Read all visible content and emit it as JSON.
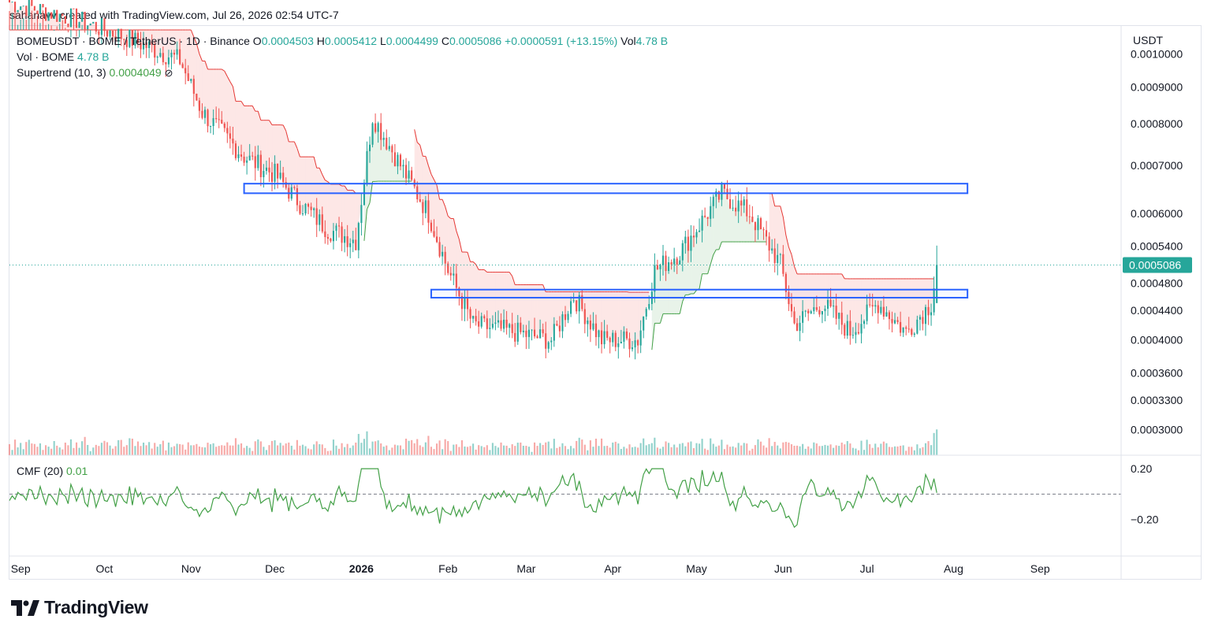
{
  "attribution": "sahanavv created with TradingView.com, Jul 26, 2026 02:54 UTC-7",
  "legend": {
    "symbol": "BOMEUSDT · BOME / TetherUS · 1D · Binance",
    "o_label": "O",
    "o_value": "0.0004503",
    "h_label": "H",
    "h_value": "0.0005412",
    "l_label": "L",
    "l_value": "0.0004499",
    "c_label": "C",
    "c_value": "0.0005086",
    "change": "+0.0000591 (+13.15%)",
    "vol_label": "Vol",
    "vol_value": "4.78 B",
    "vol_row_label": "Vol · BOME",
    "vol_row_value": "4.78 B",
    "supertrend_label": "Supertrend (10, 3)",
    "supertrend_value": "0.0004049",
    "supertrend_icon": "visibility-off-icon"
  },
  "cmf_legend": {
    "label": "CMF (20)",
    "value": "0.01"
  },
  "brand": {
    "name": "TradingView",
    "icon": "tradingview-logo-icon"
  },
  "colors": {
    "up": "#26a69a",
    "down": "#ef5350",
    "supertrend_up": "#43a047",
    "supertrend_down": "#e53935",
    "box": "#2962ff",
    "last_price_bg": "#26a69a"
  },
  "chart_data": [
    {
      "type": "candlestick",
      "symbol": "BOMEUSDT",
      "exchange": "Binance",
      "interval": "1D",
      "currency": "USDT",
      "y_scale": "log",
      "ylim": [
        0.00028,
        0.00108
      ],
      "y_ticks": [
        "0.0010000",
        "0.0009000",
        "0.0008000",
        "0.0007000",
        "0.0006000",
        "0.0005400",
        "0.0004800",
        "0.0004400",
        "0.0004000",
        "0.0003600",
        "0.0003300",
        "0.0003000"
      ],
      "x_ticks": [
        "Sep",
        "Oct",
        "Nov",
        "Dec",
        "2026",
        "Feb",
        "Mar",
        "Apr",
        "May",
        "Jun",
        "Jul",
        "Aug",
        "Sep"
      ],
      "last_price": "0.0005086",
      "last_bar": {
        "open": 0.0004503,
        "high": 0.0005412,
        "low": 0.0004499,
        "close": 0.0005086
      },
      "price_path": [
        {
          "date": "2025-08-28",
          "close": 0.00118
        },
        {
          "date": "2025-09-20",
          "close": 0.00112
        },
        {
          "date": "2025-10-10",
          "close": 0.00105
        },
        {
          "date": "2025-10-28",
          "close": 0.00098
        },
        {
          "date": "2025-11-05",
          "close": 0.00083
        },
        {
          "date": "2025-11-20",
          "close": 0.00072
        },
        {
          "date": "2025-12-01",
          "close": 0.00068
        },
        {
          "date": "2025-12-10",
          "close": 0.00062
        },
        {
          "date": "2025-12-20",
          "close": 0.00057
        },
        {
          "date": "2025-12-30",
          "close": 0.00055
        },
        {
          "date": "2026-01-05",
          "close": 0.00082
        },
        {
          "date": "2026-01-15",
          "close": 0.0007
        },
        {
          "date": "2026-01-25",
          "close": 0.0006
        },
        {
          "date": "2026-02-01",
          "close": 0.0005
        },
        {
          "date": "2026-02-10",
          "close": 0.00042
        },
        {
          "date": "2026-02-25",
          "close": 0.00041
        },
        {
          "date": "2026-03-10",
          "close": 0.0004
        },
        {
          "date": "2026-03-18",
          "close": 0.00046
        },
        {
          "date": "2026-03-28",
          "close": 0.0004
        },
        {
          "date": "2026-04-10",
          "close": 0.0004
        },
        {
          "date": "2026-04-16",
          "close": 0.0005
        },
        {
          "date": "2026-04-25",
          "close": 0.00053
        },
        {
          "date": "2026-05-10",
          "close": 0.00064
        },
        {
          "date": "2026-05-20",
          "close": 0.0006
        },
        {
          "date": "2026-05-31",
          "close": 0.00051
        },
        {
          "date": "2026-06-05",
          "close": 0.00042
        },
        {
          "date": "2026-06-15",
          "close": 0.00045
        },
        {
          "date": "2026-06-25",
          "close": 0.00041
        },
        {
          "date": "2026-07-05",
          "close": 0.00045
        },
        {
          "date": "2026-07-15",
          "close": 0.00041
        },
        {
          "date": "2026-07-24",
          "close": 0.00045
        },
        {
          "date": "2026-07-26",
          "close": 0.0005086
        }
      ],
      "annotations": [
        {
          "type": "box",
          "price_top": 0.00066,
          "price_bottom": 0.00064,
          "start": "2025-11-20",
          "end": "2026-08-06"
        },
        {
          "type": "box",
          "price_top": 0.00047,
          "price_bottom": 0.000458,
          "start": "2026-01-26",
          "end": "2026-08-06"
        }
      ]
    },
    {
      "type": "line",
      "name": "CMF (20)",
      "y_ticks": [
        "0.20",
        "−0.20"
      ],
      "ylim": [
        -0.45,
        0.25
      ],
      "baseline": 0,
      "last_value": 0.01
    },
    {
      "type": "bar",
      "name": "Vol · BOME",
      "last_value": "4.78 B"
    }
  ]
}
